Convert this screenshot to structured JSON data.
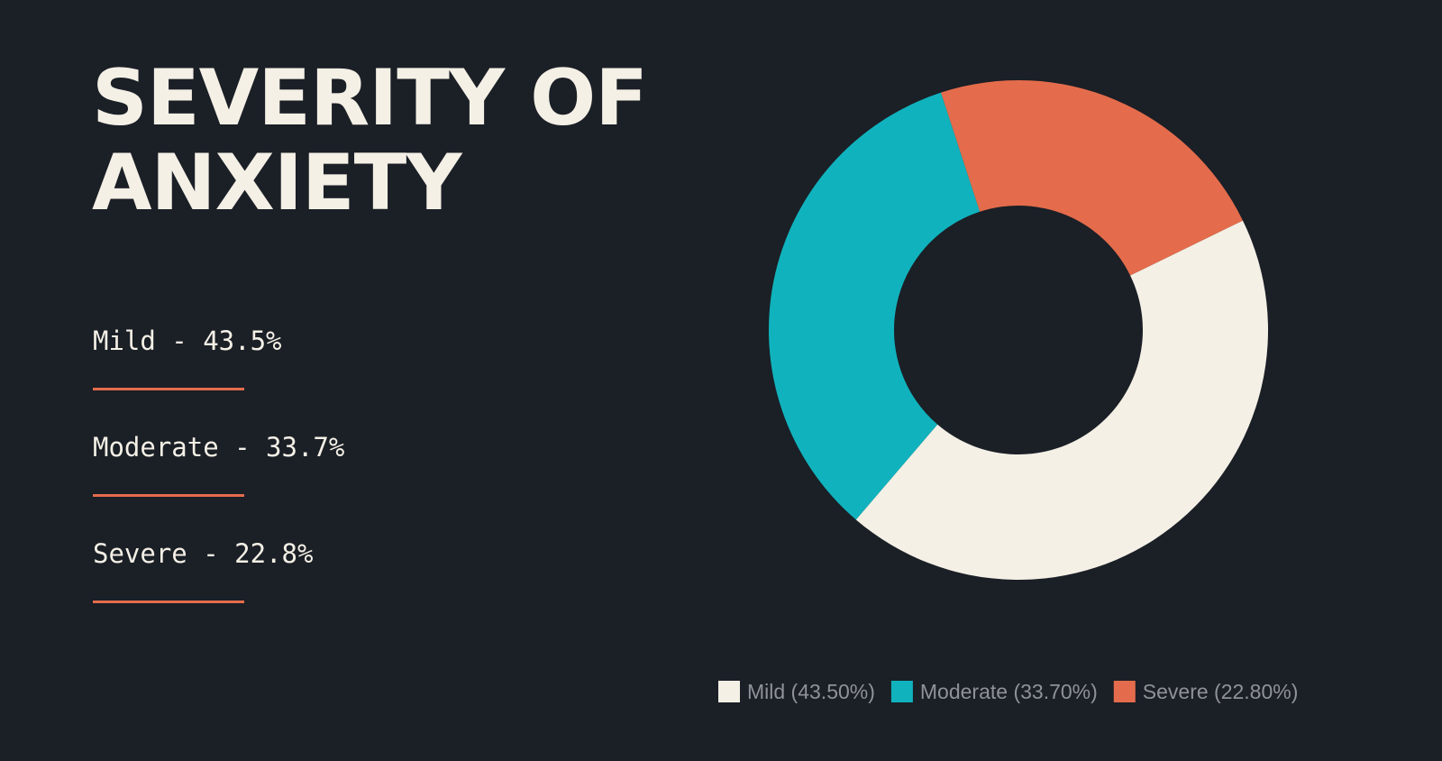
{
  "title": "SEVERITY OF ANXIETY",
  "stats": [
    {
      "label": "Mild - 43.5%"
    },
    {
      "label": "Moderate - 33.7%"
    },
    {
      "label": "Severe - 22.8%"
    }
  ],
  "chart_data": {
    "type": "pie",
    "variant": "donut",
    "title": "",
    "categories": [
      "Mild",
      "Moderate",
      "Severe"
    ],
    "values": [
      43.5,
      33.7,
      22.8
    ],
    "legend_labels": [
      "Mild (43.50%)",
      "Moderate (33.70%)",
      "Severe (22.80%)"
    ],
    "colors": [
      "#f4f0e6",
      "#10b3bd",
      "#e46c4c"
    ],
    "legend_position": "bottom"
  },
  "theme": {
    "background": "#1b1f26",
    "accent": "#e46c4c",
    "text": "#f4f0e6",
    "legend_text": "#8f9298"
  }
}
